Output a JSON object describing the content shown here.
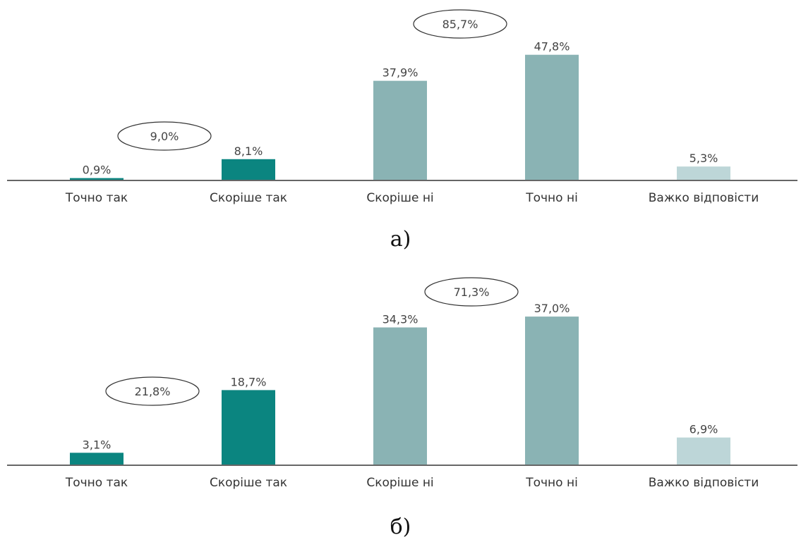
{
  "chart_data": [
    {
      "type": "bar",
      "categories": [
        "Точно так",
        "Скоріше так",
        "Скоріше ні",
        "Точно ні",
        "Важко відповісти"
      ],
      "values": [
        0.9,
        8.1,
        37.9,
        47.8,
        5.3
      ],
      "value_labels": [
        "0,9%",
        "8,1%",
        "37,9%",
        "47,8%",
        "5,3%"
      ],
      "bar_colors": [
        "#0b8580",
        "#0b8580",
        "#8ab3b4",
        "#8ab3b4",
        "#bdd6d8"
      ],
      "group_totals": [
        {
          "label": "9,0%",
          "categories": [
            "Точно так",
            "Скоріше так"
          ]
        },
        {
          "label": "85,7%",
          "categories": [
            "Скоріше ні",
            "Точно ні"
          ]
        }
      ],
      "caption": "а)",
      "ylim": [
        0,
        50
      ]
    },
    {
      "type": "bar",
      "categories": [
        "Точно так",
        "Скоріше так",
        "Скоріше ні",
        "Точно ні",
        "Важко відповісти"
      ],
      "values": [
        3.1,
        18.7,
        34.3,
        37.0,
        6.9
      ],
      "value_labels": [
        "3,1%",
        "18,7%",
        "34,3%",
        "37,0%",
        "6,9%"
      ],
      "bar_colors": [
        "#0b8580",
        "#0b8580",
        "#8ab3b4",
        "#8ab3b4",
        "#bdd6d8"
      ],
      "group_totals": [
        {
          "label": "21,8%",
          "categories": [
            "Точно так",
            "Скоріше так"
          ]
        },
        {
          "label": "71,3%",
          "categories": [
            "Скоріше ні",
            "Точно ні"
          ]
        }
      ],
      "caption": "б)",
      "ylim": [
        0,
        50
      ]
    }
  ]
}
